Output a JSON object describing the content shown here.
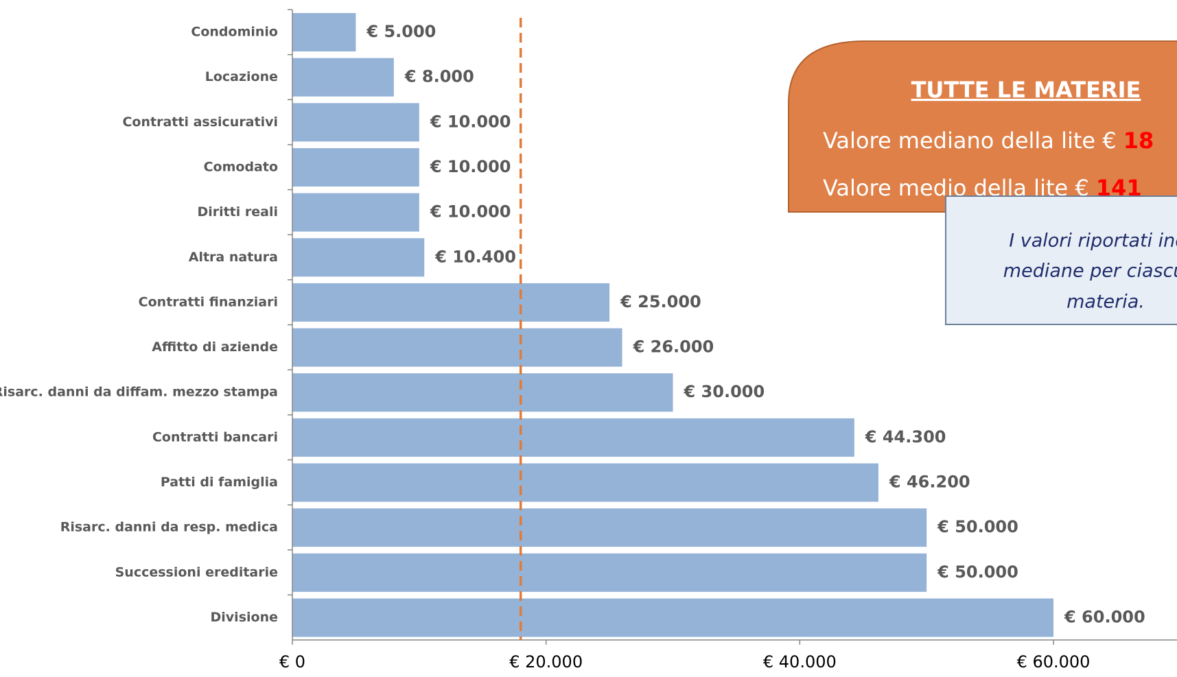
{
  "chart_data": {
    "type": "bar",
    "orientation": "horizontal",
    "categories": [
      "Condominio",
      "Locazione",
      "Contratti assicurativi",
      "Comodato",
      "Diritti reali",
      "Altra natura",
      "Contratti finanziari",
      "Affitto di aziende",
      "Risarc. danni da diffam. mezzo stampa",
      "Contratti bancari",
      "Patti di famiglia",
      "Risarc. danni da resp. medica",
      "Successioni ereditarie",
      "Divisione"
    ],
    "values": [
      5000,
      8000,
      10000,
      10000,
      10000,
      10400,
      25000,
      26000,
      30000,
      44300,
      46200,
      50000,
      50000,
      60000
    ],
    "value_labels": [
      "€ 5.000",
      "€ 8.000",
      "€ 10.000",
      "€ 10.000",
      "€ 10.000",
      "€ 10.400",
      "€ 25.000",
      "€ 26.000",
      "€ 30.000",
      "€ 44.300",
      "€ 46.200",
      "€ 50.000",
      "€ 50.000",
      "€ 60.000"
    ],
    "color": "#95b3d7",
    "xlim": [
      0,
      70000
    ],
    "xticks": [
      {
        "value": 0,
        "label": "€ 0"
      },
      {
        "value": 20000,
        "label": "€ 20.000"
      },
      {
        "value": 40000,
        "label": "€ 40.000"
      },
      {
        "value": 60000,
        "label": "€ 60.000"
      }
    ],
    "reference_line": {
      "value": 18000,
      "color": "#e07b39"
    },
    "box": {
      "title": "TUTTE LE MATERIE",
      "line1": "Valore mediano della lite €",
      "line1_value": "18",
      "line2": "Valore medio della lite  €",
      "line2_value": "141"
    },
    "note": [
      "I valori riportati indic",
      "mediane per ciascuna",
      "materia."
    ]
  }
}
